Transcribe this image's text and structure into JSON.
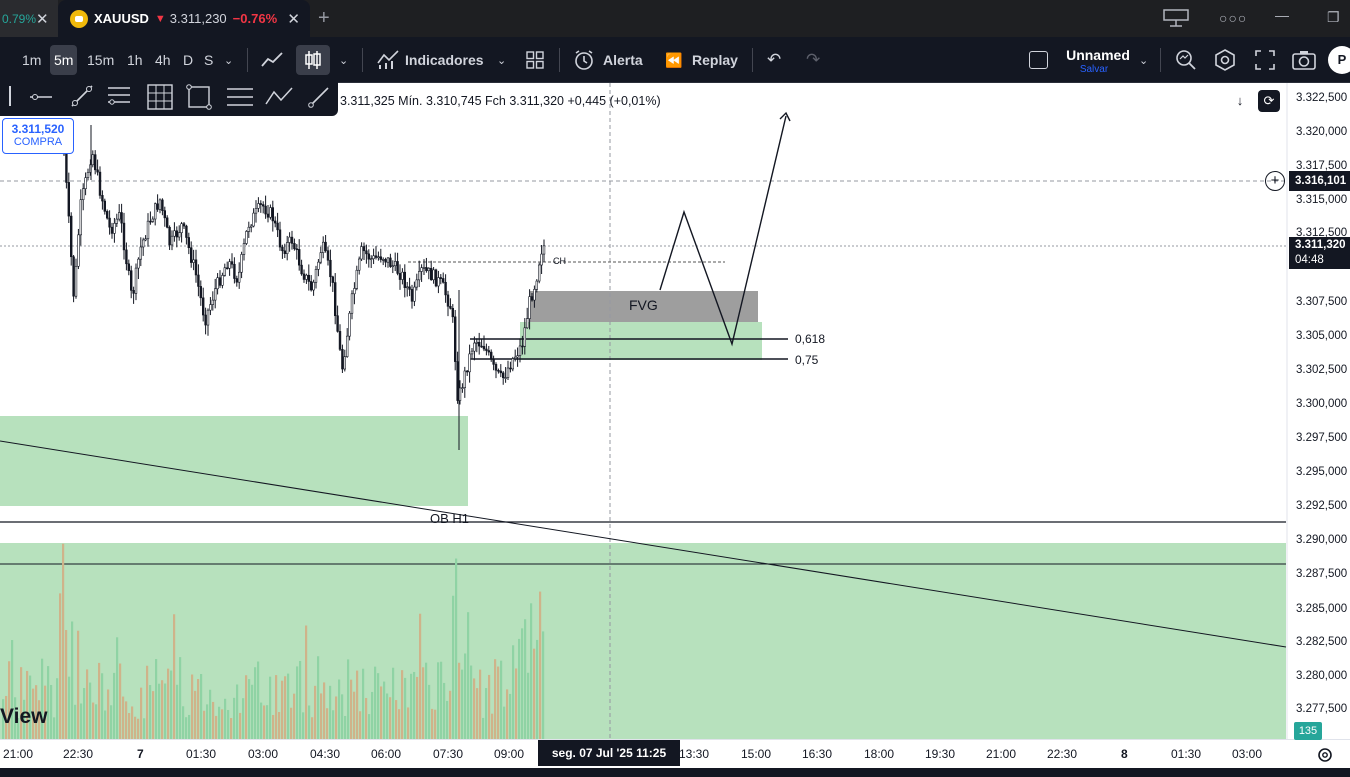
{
  "tabs": {
    "prev_value": "0.79",
    "active_symbol": "XAUUSD",
    "active_price": "3.311,230",
    "active_change": "−0.76%"
  },
  "toolbar": {
    "intervals": [
      "1m",
      "5m",
      "15m",
      "1h",
      "4h",
      "D",
      "S"
    ],
    "selected_interval": "5m",
    "indicators_label": "Indicadores",
    "alert_label": "Alerta",
    "replay_label": "Replay",
    "layout_name": "Unnamed",
    "save_label": "Salvar",
    "profile_initial": "P"
  },
  "legend": {
    "ohlc_text": "3.311,325  Mín. 3.310,745  Fch 3.311,320  +0,445 (+0,01%)"
  },
  "buy_box": {
    "price": "3.311,520",
    "label": "COMPRA"
  },
  "price_axis": {
    "labels": [
      "3.322,500",
      "3.320,000",
      "3.317,500",
      "3.315,000",
      "3.312,500",
      "3.307,500",
      "3.305,000",
      "3.302,500",
      "3.300,000",
      "3.297,500",
      "3.295,000",
      "3.292,500",
      "3.290,000",
      "3.287,500",
      "3.285,000",
      "3.282,500",
      "3.280,000",
      "3.277,500"
    ],
    "crosshair_price": "3.316,101",
    "last_price": "3.311,320",
    "countdown": "04:48",
    "volume_badge": "135"
  },
  "time_axis": {
    "labels": [
      "21:00",
      "22:30",
      "7",
      "01:30",
      "03:00",
      "04:30",
      "06:00",
      "07:30",
      "09:00",
      "13:30",
      "15:00",
      "16:30",
      "18:00",
      "19:30",
      "21:00",
      "22:30",
      "8",
      "01:30",
      "03:00"
    ],
    "crosshair_time": "seg. 07 Jul '25   11:25"
  },
  "annotations": {
    "fvg": "FVG",
    "fib_618": "0,618",
    "fib_75": "0,75",
    "ob": "OB H1",
    "ch": "CH"
  },
  "watermark": "View",
  "colors": {
    "up": "#26a69a",
    "down": "#f23645",
    "zone_green": "#b7e1bd",
    "zone_gray": "#9e9e9e",
    "volume_up": "#8fd3a4",
    "volume_down": "#cfb38a",
    "accent": "#2962ff"
  }
}
